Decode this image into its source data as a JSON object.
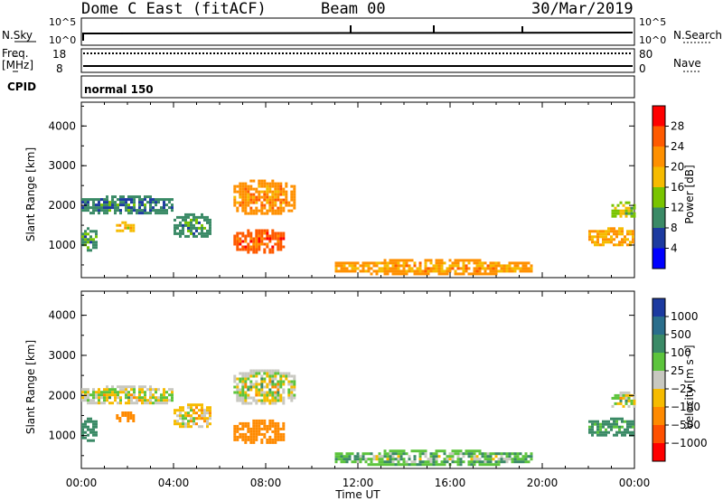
{
  "header": {
    "site": "Dome C East (fitACF)",
    "beam": "Beam 00",
    "date": "30/Mar/2019"
  },
  "top_strip": {
    "left_label": "N.Sky",
    "right_label": "N.Search",
    "left_ticks": [
      "10^5",
      "10^0"
    ],
    "right_ticks": [
      "10^5",
      "10^0"
    ]
  },
  "freq_strip": {
    "left_label_1": "Freq.",
    "left_label_2": "[MHz]",
    "right_label": "Nave",
    "left_ticks": [
      "18",
      "8"
    ],
    "right_ticks": [
      "80",
      "0"
    ]
  },
  "cpid": {
    "label": "CPID",
    "value": "normal 150"
  },
  "axes": {
    "x_label": "Time UT",
    "x_ticks": [
      "00:00",
      "04:00",
      "08:00",
      "12:00",
      "16:00",
      "20:00",
      "00:00"
    ],
    "y_label": "Slant Range [km]",
    "y_ticks": [
      "4000",
      "3000",
      "2000",
      "1000"
    ]
  },
  "power_scale": {
    "label": "Power [dB]",
    "ticks": [
      "28",
      "24",
      "20",
      "16",
      "12",
      "8",
      "4"
    ],
    "colors": [
      "#ff0000",
      "#ff5a00",
      "#ff9000",
      "#f6bb00",
      "#79c400",
      "#3a8a66",
      "#1c3aa0",
      "#0000ff"
    ]
  },
  "velocity_scale": {
    "label": "Velocity [m s⁻¹]",
    "ticks": [
      "1000",
      "500",
      "100",
      "25",
      "−25",
      "−100",
      "−500",
      "−1000"
    ],
    "colors": [
      "#1c3aa0",
      "#2a6e8c",
      "#3a8a66",
      "#5cc43c",
      "#c8c8c0",
      "#f6bb00",
      "#ff8a00",
      "#ff5000",
      "#ff0000"
    ]
  },
  "chart_data": [
    {
      "type": "heatmap",
      "title": "Power",
      "xlabel": "Time UT",
      "ylabel": "Slant Range [km]",
      "xlim": [
        "00:00",
        "24:00"
      ],
      "ylim": [
        180,
        4600
      ],
      "colorbar": {
        "label": "Power [dB]",
        "range": [
          0,
          30
        ]
      },
      "regions": [
        {
          "t0": 0.0,
          "t1": 4.0,
          "r0": 1800,
          "r1": 2250,
          "value": 7
        },
        {
          "t0": 0.0,
          "t1": 0.6,
          "r0": 900,
          "r1": 1450,
          "value": 9
        },
        {
          "t0": 1.5,
          "t1": 2.3,
          "r0": 1350,
          "r1": 1600,
          "value": 16
        },
        {
          "t0": 4.0,
          "t1": 5.6,
          "r0": 1200,
          "r1": 1800,
          "value": 8
        },
        {
          "t0": 6.6,
          "t1": 9.2,
          "r0": 1800,
          "r1": 2650,
          "value": 20
        },
        {
          "t0": 6.6,
          "t1": 8.8,
          "r0": 850,
          "r1": 1400,
          "value": 24
        },
        {
          "t0": 11.0,
          "t1": 19.5,
          "r0": 300,
          "r1": 650,
          "value": 19
        },
        {
          "t0": 22.0,
          "t1": 24.0,
          "r0": 1000,
          "r1": 1450,
          "value": 18
        },
        {
          "t0": 23.0,
          "t1": 24.0,
          "r0": 1700,
          "r1": 2100,
          "value": 12
        }
      ]
    },
    {
      "type": "heatmap",
      "title": "Velocity",
      "xlabel": "Time UT",
      "ylabel": "Slant Range [km]",
      "xlim": [
        "00:00",
        "24:00"
      ],
      "ylim": [
        180,
        4600
      ],
      "colorbar": {
        "label": "Velocity [m s⁻¹]",
        "range": [
          -1000,
          1000
        ]
      },
      "regions": [
        {
          "t0": 0.0,
          "t1": 4.0,
          "r0": 1800,
          "r1": 2250,
          "value": 0
        },
        {
          "t0": 0.0,
          "t1": 0.6,
          "r0": 900,
          "r1": 1450,
          "value": 200
        },
        {
          "t0": 1.5,
          "t1": 2.3,
          "r0": 1350,
          "r1": 1600,
          "value": -200
        },
        {
          "t0": 4.0,
          "t1": 5.6,
          "r0": 1200,
          "r1": 1800,
          "value": -50
        },
        {
          "t0": 6.6,
          "t1": 9.2,
          "r0": 1800,
          "r1": 2650,
          "value": 0
        },
        {
          "t0": 6.6,
          "t1": 8.8,
          "r0": 850,
          "r1": 1400,
          "value": -300
        },
        {
          "t0": 11.0,
          "t1": 19.5,
          "r0": 300,
          "r1": 650,
          "value": 80
        },
        {
          "t0": 22.0,
          "t1": 24.0,
          "r0": 1000,
          "r1": 1450,
          "value": 150
        },
        {
          "t0": 23.0,
          "t1": 24.0,
          "r0": 1700,
          "r1": 2100,
          "value": 0
        }
      ]
    }
  ]
}
